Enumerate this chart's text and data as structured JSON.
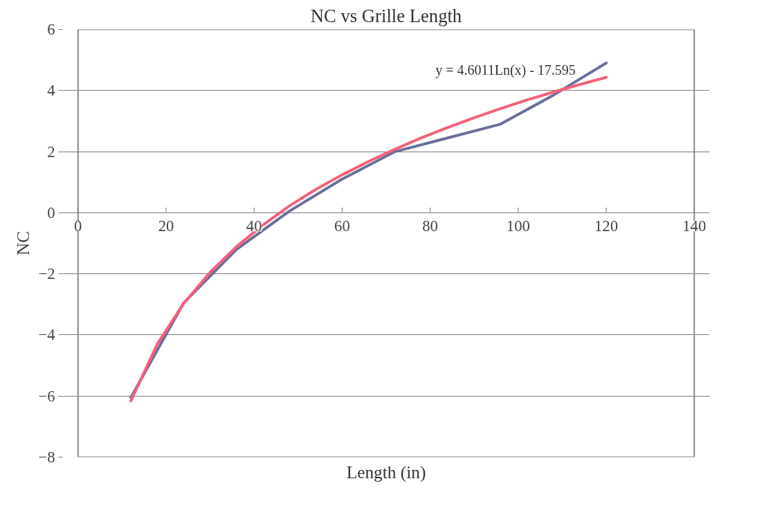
{
  "chart_data": {
    "type": "line",
    "title": "NC vs Grille Length",
    "xlabel": "Length (in)",
    "ylabel": "NC",
    "xlim": [
      0,
      140
    ],
    "xticks": [
      0,
      20,
      40,
      60,
      80,
      100,
      120,
      140
    ],
    "ylim": [
      -8,
      6
    ],
    "yticks": [
      -8,
      -6,
      -4,
      -2,
      0,
      2,
      4,
      6
    ],
    "grid": "y",
    "series": [
      {
        "color": "#6a6f9a",
        "x": [
          12,
          24,
          36,
          48,
          60,
          72,
          84,
          96,
          108,
          120
        ],
        "values": [
          -6.05,
          -2.95,
          -1.2,
          0.05,
          1.1,
          2.0,
          2.45,
          2.9,
          3.85,
          4.9
        ]
      },
      {
        "color": "#f5607a",
        "x": [
          12,
          18,
          24,
          30,
          36,
          42,
          48,
          54,
          60,
          66,
          72,
          78,
          84,
          90,
          96,
          102,
          108,
          114,
          120
        ],
        "values": [
          -6.16,
          -4.3,
          -2.97,
          -1.95,
          -1.11,
          -0.4,
          0.22,
          0.76,
          1.24,
          1.68,
          2.08,
          2.45,
          2.79,
          3.11,
          3.41,
          3.69,
          3.95,
          4.2,
          4.43
        ]
      }
    ],
    "annotations": [
      "y = 4.6011Ln(x) - 17.595"
    ]
  }
}
